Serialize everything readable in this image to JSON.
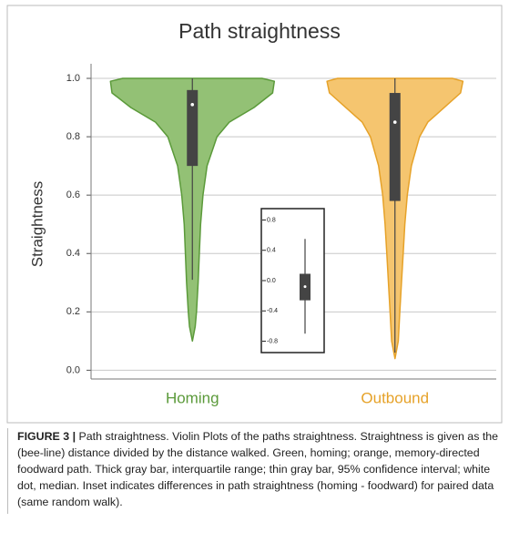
{
  "chart_data": [
    {
      "type": "violin",
      "title": "Path straightness",
      "ylabel": "Straightness",
      "categories": [
        "Homing",
        "Outbound"
      ],
      "colors": [
        "#5b9a3a",
        "#e6a229"
      ],
      "fills": [
        "#93c175",
        "#f5c56f"
      ],
      "ylim": [
        -0.03,
        1.05
      ],
      "yticks": [
        {
          "value": 0,
          "label": "0.0"
        },
        0.2,
        0.4,
        0.6,
        0.8,
        {
          "value": 1,
          "label": "1.0"
        }
      ],
      "grid": true,
      "series": [
        {
          "min": 0.1,
          "q1": 0.7,
          "median": 0.91,
          "q3": 0.96,
          "max": 1.0,
          "whisker_low": 0.31,
          "whisker_high": 1.0,
          "density_at": [
            1.0,
            0.99,
            0.95,
            0.9,
            0.85,
            0.8,
            0.7,
            0.6,
            0.5,
            0.4,
            0.3,
            0.2,
            0.15,
            0.1
          ],
          "density": [
            0.85,
            1.0,
            0.98,
            0.75,
            0.45,
            0.3,
            0.18,
            0.13,
            0.1,
            0.085,
            0.07,
            0.05,
            0.035,
            0.0
          ]
        },
        {
          "min": 0.04,
          "q1": 0.58,
          "median": 0.85,
          "q3": 0.95,
          "max": 1.0,
          "whisker_low": 0.06,
          "whisker_high": 1.0,
          "density_at": [
            1.0,
            0.99,
            0.95,
            0.9,
            0.85,
            0.8,
            0.7,
            0.6,
            0.5,
            0.4,
            0.3,
            0.2,
            0.1,
            0.04
          ],
          "density": [
            0.7,
            0.83,
            0.8,
            0.6,
            0.4,
            0.3,
            0.2,
            0.15,
            0.12,
            0.1,
            0.08,
            0.06,
            0.04,
            0.0
          ]
        }
      ]
    },
    {
      "type": "box",
      "ylim": [
        -0.95,
        0.95
      ],
      "yticks": [
        -0.8,
        -0.4,
        {
          "value": 0,
          "label": "0.0"
        },
        0.4,
        0.8
      ],
      "q1": -0.26,
      "median": -0.08,
      "q3": 0.09,
      "whisker_low": -0.7,
      "whisker_high": 0.55
    }
  ],
  "caption": {
    "label": "FIGURE 3 |",
    "text": "Path straightness. Violin Plots of the paths straightness. Straightness is given as the (bee-line) distance divided by the distance walked. Green, homing; orange, memory-directed foodward path. Thick gray bar, interquartile range; thin gray bar, 95% confidence interval; white dot, median. Inset indicates differences in path straightness (homing - foodward) for paired data (same random walk)."
  }
}
